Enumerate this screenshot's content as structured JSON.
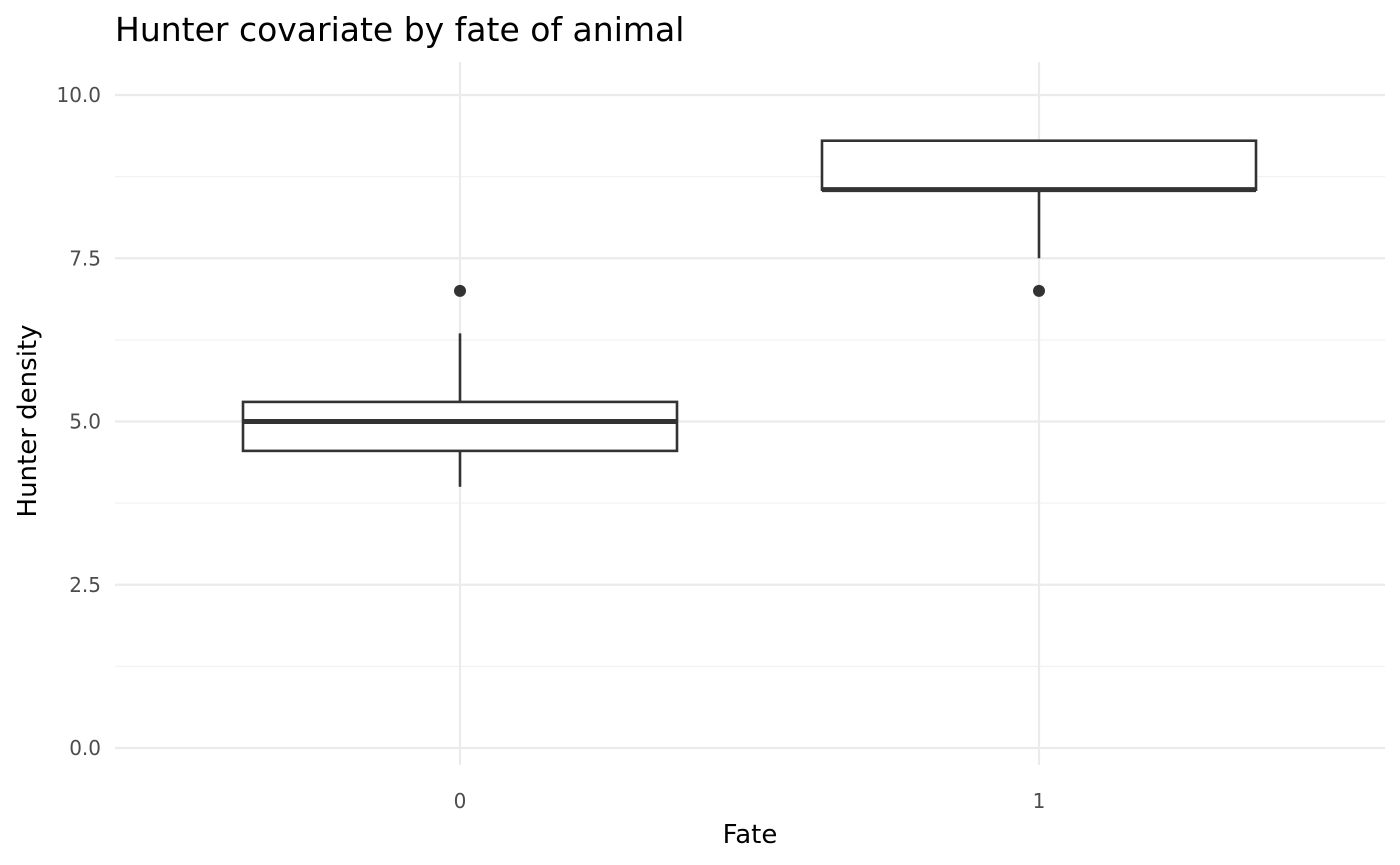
{
  "chart_data": {
    "type": "boxplot",
    "title": "Hunter covariate by fate of animal",
    "xlabel": "Fate",
    "ylabel": "Hunter density",
    "categories": [
      "0",
      "1"
    ],
    "boxes": [
      {
        "category": "0",
        "whisker_low": 4.0,
        "q1": 4.55,
        "median": 5.0,
        "q3": 5.3,
        "whisker_high": 6.35,
        "outliers": [
          7.0
        ]
      },
      {
        "category": "1",
        "whisker_low": 7.5,
        "q1": 8.55,
        "median": 8.55,
        "q3": 9.3,
        "whisker_high": 9.3,
        "outliers": [
          7.0
        ]
      }
    ],
    "ylim": [
      -0.25,
      10.5
    ],
    "y_ticks": [
      0.0,
      2.5,
      5.0,
      7.5,
      10.0
    ],
    "y_tick_labels": [
      "0.0",
      "2.5",
      "5.0",
      "7.5",
      "10.0"
    ],
    "y_minor_ticks": [
      1.25,
      3.75,
      6.25,
      8.75
    ],
    "grid": true,
    "legend": "none"
  }
}
